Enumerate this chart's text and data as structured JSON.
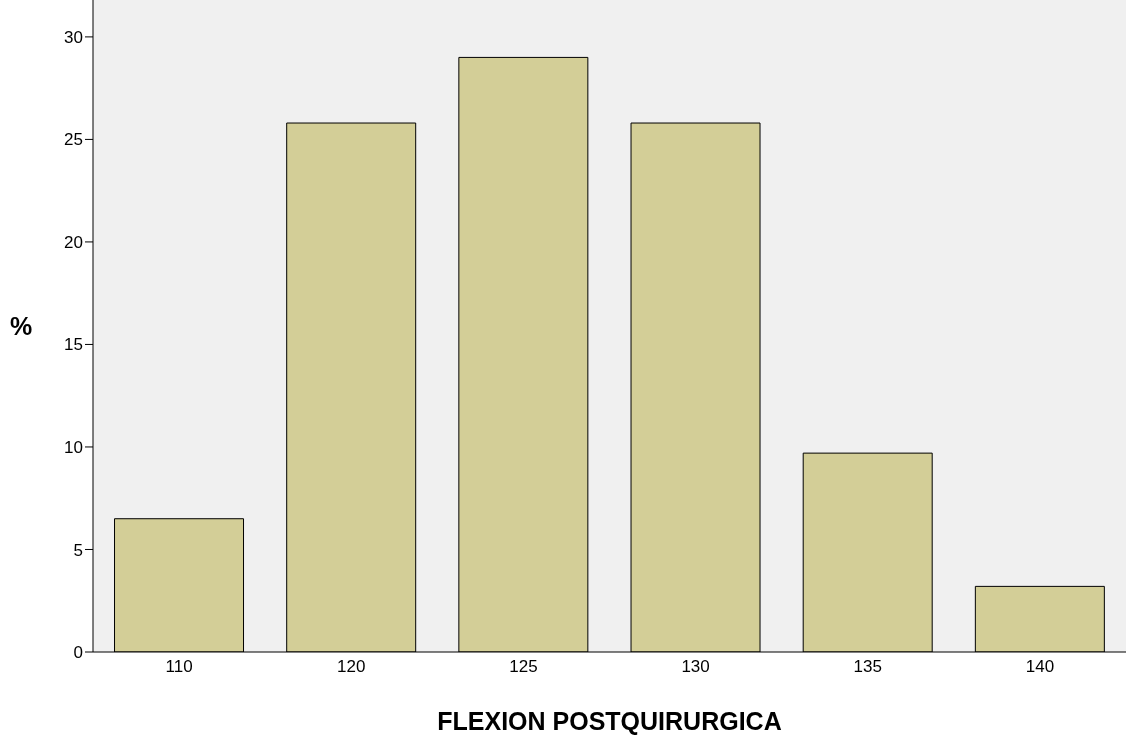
{
  "chart_data": {
    "type": "bar",
    "xlabel": "FLEXION POSTQUIRURGICA",
    "ylabel": "%",
    "categories": [
      "110",
      "120",
      "125",
      "130",
      "135",
      "140"
    ],
    "values": [
      6.5,
      25.8,
      29.0,
      25.8,
      9.7,
      3.2
    ],
    "color": "#d3ce97",
    "ylim": [
      0,
      31.8
    ],
    "yticks": [
      0,
      5,
      10,
      15,
      20,
      25,
      30
    ],
    "grid": false
  }
}
